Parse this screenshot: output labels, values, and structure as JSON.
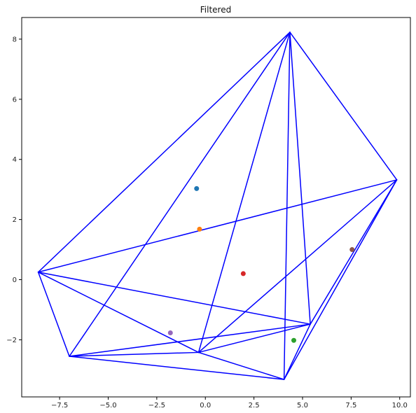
{
  "chart_data": {
    "type": "scatter",
    "title": "Filtered",
    "xlabel": "",
    "ylabel": "",
    "xlim": [
      -9.45,
      10.55
    ],
    "ylim": [
      -3.9,
      8.72
    ],
    "x_ticks": [
      -7.5,
      -5.0,
      -2.5,
      0.0,
      2.5,
      5.0,
      7.5,
      10.0
    ],
    "x_tick_labels": [
      "−7.5",
      "−5.0",
      "−2.5",
      "0.0",
      "2.5",
      "5.0",
      "7.5",
      "10.0"
    ],
    "y_ticks": [
      -2,
      0,
      2,
      4,
      6,
      8
    ],
    "y_tick_labels": [
      "−2",
      "0",
      "2",
      "4",
      "6",
      "8"
    ],
    "grid": false,
    "line_color": "#0000ff",
    "vertices": [
      {
        "id": "A",
        "x": 4.35,
        "y": 8.23
      },
      {
        "id": "B",
        "x": 9.85,
        "y": 3.32
      },
      {
        "id": "C",
        "x": -8.6,
        "y": 0.25
      },
      {
        "id": "D",
        "x": -7.0,
        "y": -2.55
      },
      {
        "id": "E",
        "x": -0.35,
        "y": -2.42
      },
      {
        "id": "F",
        "x": 4.05,
        "y": -3.32
      },
      {
        "id": "G",
        "x": 5.4,
        "y": -1.48
      }
    ],
    "edges": [
      [
        "A",
        "C"
      ],
      [
        "A",
        "D"
      ],
      [
        "A",
        "E"
      ],
      [
        "A",
        "F"
      ],
      [
        "A",
        "G"
      ],
      [
        "A",
        "B"
      ],
      [
        "B",
        "C"
      ],
      [
        "B",
        "E"
      ],
      [
        "B",
        "F"
      ],
      [
        "B",
        "G"
      ],
      [
        "C",
        "D"
      ],
      [
        "C",
        "E"
      ],
      [
        "C",
        "G"
      ],
      [
        "D",
        "E"
      ],
      [
        "D",
        "F"
      ],
      [
        "D",
        "G"
      ],
      [
        "E",
        "F"
      ],
      [
        "E",
        "G"
      ],
      [
        "F",
        "G"
      ]
    ],
    "points": [
      {
        "x": -0.45,
        "y": 3.03,
        "color": "#1f77b4"
      },
      {
        "x": -0.3,
        "y": 1.68,
        "color": "#ff7f0e"
      },
      {
        "x": 1.95,
        "y": 0.2,
        "color": "#d62728"
      },
      {
        "x": 7.55,
        "y": 1.0,
        "color": "#8c564b"
      },
      {
        "x": -1.8,
        "y": -1.77,
        "color": "#9467bd"
      },
      {
        "x": 4.55,
        "y": -2.02,
        "color": "#2ca02c"
      }
    ]
  }
}
